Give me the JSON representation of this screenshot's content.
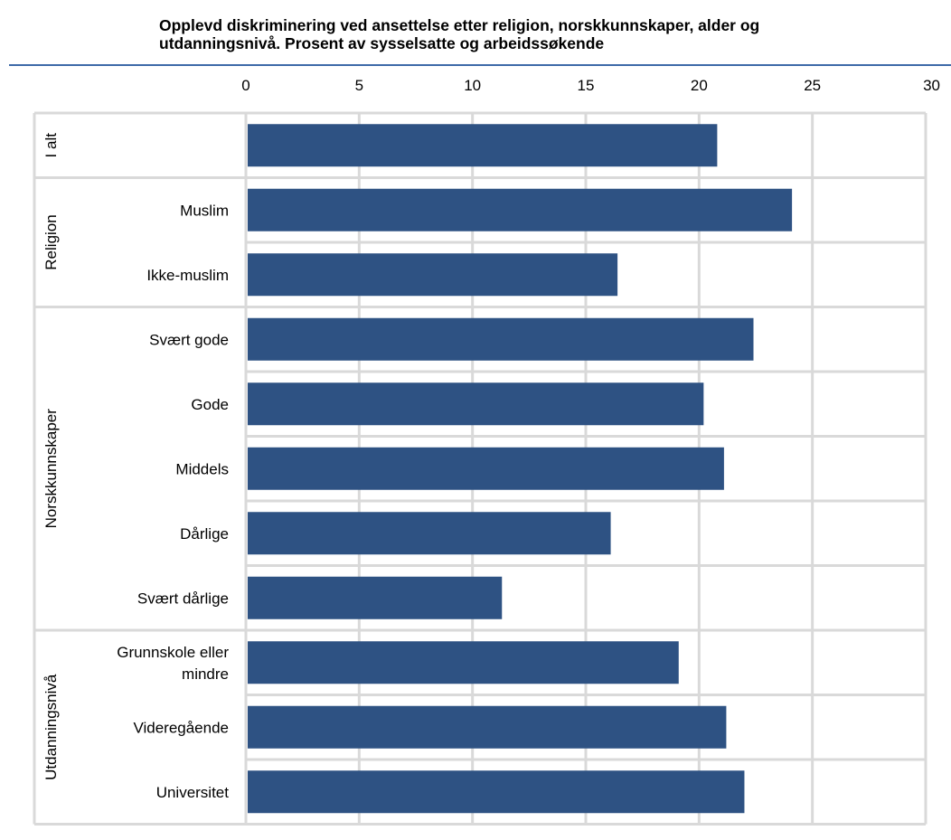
{
  "chart_data": {
    "type": "bar",
    "orientation": "horizontal",
    "title": "Opplevd diskriminering ved ansettelse etter religion, norskkunnskaper, alder og utdanningsnivå. Prosent av sysselsatte og arbeidssøkende",
    "title_lines": [
      "Opplevd diskriminering ved ansettelse etter religion, norskkunnskaper, alder og",
      "utdanningsnivå. Prosent av sysselsatte og arbeidssøkende"
    ],
    "xlim": [
      0,
      30
    ],
    "xticks": [
      0,
      5,
      10,
      15,
      20,
      25,
      30
    ],
    "xaxis_position": "top",
    "grid": true,
    "bar_color": "#2e5283",
    "grid_color": "#d9d9d9",
    "title_rule_color": "#3d6aa8",
    "groups": [
      {
        "name": "I alt",
        "categories": [
          {
            "label": [
              ""
            ],
            "value": 20.8
          }
        ]
      },
      {
        "name": "Religion",
        "categories": [
          {
            "label": [
              "Muslim"
            ],
            "value": 24.1
          },
          {
            "label": [
              "Ikke-muslim"
            ],
            "value": 16.4
          }
        ]
      },
      {
        "name": "Norskkunnskaper",
        "categories": [
          {
            "label": [
              "Svært gode"
            ],
            "value": 22.4
          },
          {
            "label": [
              "Gode"
            ],
            "value": 20.2
          },
          {
            "label": [
              "Middels"
            ],
            "value": 21.1
          },
          {
            "label": [
              "Dårlige"
            ],
            "value": 16.1
          },
          {
            "label": [
              "Svært dårlige"
            ],
            "value": 11.3
          }
        ]
      },
      {
        "name": "Utdanningsnivå",
        "categories": [
          {
            "label": [
              "Grunnskole eller",
              "mindre"
            ],
            "value": 19.1
          },
          {
            "label": [
              "Videregående"
            ],
            "value": 21.2
          },
          {
            "label": [
              "Universitet"
            ],
            "value": 22.0
          }
        ]
      }
    ]
  }
}
